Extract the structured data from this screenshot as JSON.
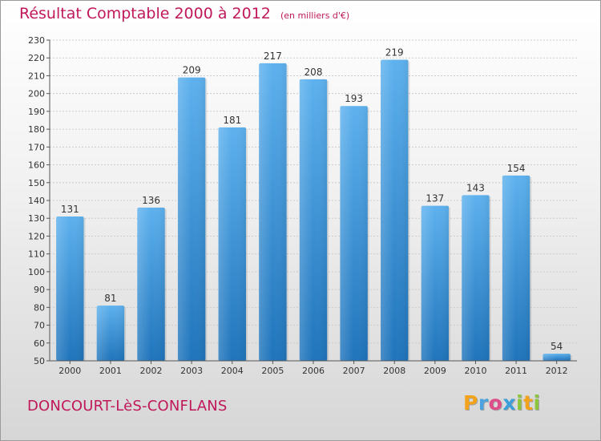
{
  "header": {
    "title": "Résultat Comptable 2000 à 2012",
    "subtitle": "(en milliers d'€)"
  },
  "footer": {
    "commune": "DONCOURT-LèS-CONFLANS"
  },
  "logo": {
    "letters": [
      "P",
      "r",
      "o",
      "x",
      "i",
      "t",
      "i"
    ],
    "colors": [
      "#f2a31b",
      "#4aa3df",
      "#e04e8a",
      "#3a9fdb",
      "#8cc63f",
      "#f2a31b",
      "#8cc63f"
    ]
  },
  "colors": {
    "bar": "#4da6e8",
    "bar_dark": "#1f78c0",
    "title": "#c0185a",
    "grid": "#cccccc"
  },
  "chart_data": {
    "type": "bar",
    "title": "Résultat Comptable 2000 à 2012",
    "xlabel": "",
    "ylabel": "",
    "categories": [
      "2000",
      "2001",
      "2002",
      "2003",
      "2004",
      "2005",
      "2006",
      "2007",
      "2008",
      "2009",
      "2010",
      "2011",
      "2012"
    ],
    "values": [
      131,
      81,
      136,
      209,
      181,
      217,
      208,
      193,
      219,
      137,
      143,
      154,
      54
    ],
    "ylim": [
      50,
      230
    ],
    "yticks": [
      50,
      60,
      70,
      80,
      90,
      100,
      110,
      120,
      130,
      140,
      150,
      160,
      170,
      180,
      190,
      200,
      210,
      220,
      230
    ],
    "grid": true
  }
}
